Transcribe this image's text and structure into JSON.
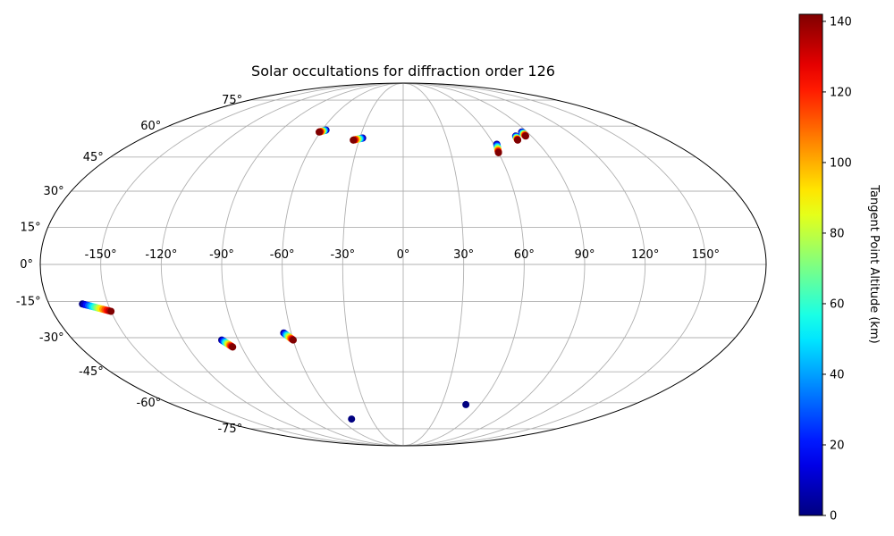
{
  "chart_data": {
    "type": "scatter",
    "projection": "mollweide",
    "title": "Solar occultations for diffraction order 126",
    "grid": true,
    "longitude_ticks": [
      "-150°",
      "-120°",
      "-90°",
      "-60°",
      "-30°",
      "0°",
      "30°",
      "60°",
      "90°",
      "120°",
      "150°"
    ],
    "latitude_ticks": [
      "75°",
      "60°",
      "45°",
      "30°",
      "15°",
      "0°",
      "-15°",
      "-30°",
      "-45°",
      "-60°",
      "-75°"
    ],
    "colorbar": {
      "label": "Tangent Point Altitude (km)",
      "colormap": "jet",
      "range": [
        0,
        142
      ],
      "ticks": [
        "0",
        "20",
        "40",
        "60",
        "80",
        "100",
        "120",
        "140"
      ],
      "placement": "right"
    },
    "point_altitude_range_km": [
      0,
      142
    ],
    "occultations": [
      {
        "lon_start": -163,
        "lat_start": -16,
        "lon_end": -150,
        "lat_end": -19
      },
      {
        "lon_start": -99,
        "lat_start": -31,
        "lon_end": -95,
        "lat_end": -34
      },
      {
        "lon_start": -64,
        "lat_start": -28,
        "lon_end": -60,
        "lat_end": -31
      },
      {
        "lon_start": -49,
        "lat_start": -69,
        "lon_end": -49,
        "lat_end": -69
      },
      {
        "lon_start": -57,
        "lat_start": 58,
        "lon_end": -61,
        "lat_end": 57
      },
      {
        "lon_start": -28,
        "lat_start": 54,
        "lon_end": -34,
        "lat_end": 53
      },
      {
        "lon_start": 62,
        "lat_start": 51,
        "lon_end": 60,
        "lat_end": 47
      },
      {
        "lon_start": 79,
        "lat_start": 55,
        "lon_end": 78,
        "lat_end": 53
      },
      {
        "lon_start": 86,
        "lat_start": 57,
        "lon_end": 86,
        "lat_end": 55
      },
      {
        "lon_start": 49,
        "lat_start": -61,
        "lon_end": 49,
        "lat_end": -61
      }
    ]
  }
}
